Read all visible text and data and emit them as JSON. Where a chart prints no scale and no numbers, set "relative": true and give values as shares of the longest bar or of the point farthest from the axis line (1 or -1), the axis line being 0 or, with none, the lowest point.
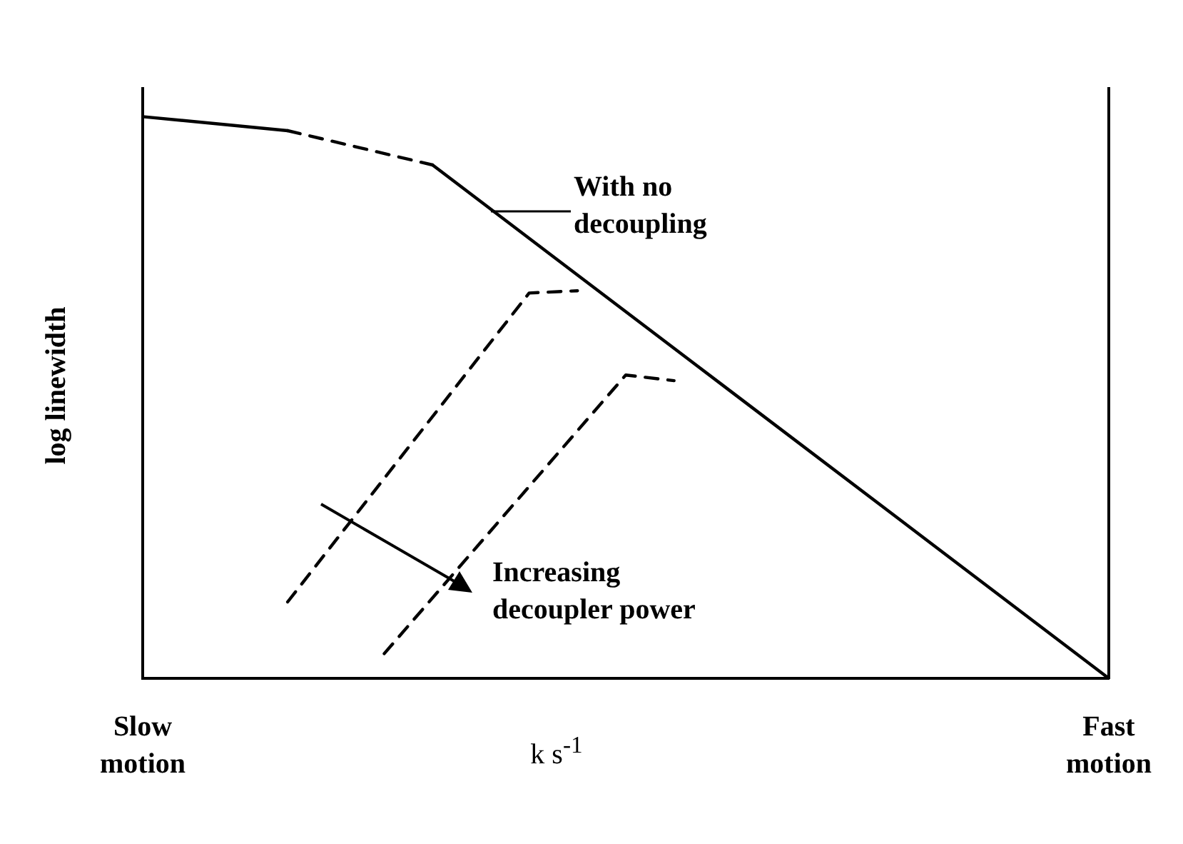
{
  "chart_data": {
    "type": "line",
    "relative": true,
    "xlabel": "k s$^{-1}$",
    "ylabel": "log linewidth",
    "legend": false,
    "grid": false,
    "tick_labels": "x",
    "marker": "none",
    "categories": [
      "Slow motion",
      null,
      null,
      null,
      null,
      null,
      null,
      null,
      null,
      null,
      null,
      null,
      null,
      null,
      null,
      null,
      null,
      null,
      null,
      null,
      "Fast motion"
    ],
    "series": [
      {
        "color": "#000000",
        "line_style": "solid",
        "values": [
          1,
          null,
          null,
          0.975,
          null,
          null,
          null,
          null,
          null,
          null,
          null,
          null,
          null,
          null,
          null,
          null,
          null,
          null,
          null,
          null,
          null
        ]
      },
      {
        "color": "#000000",
        "line_style": "dashed",
        "values": [
          null,
          null,
          null,
          0.975,
          null,
          null,
          0.914,
          null,
          null,
          null,
          null,
          null,
          null,
          null,
          null,
          null,
          null,
          null,
          null,
          null,
          null
        ]
      },
      {
        "color": "#000000",
        "line_style": "solid",
        "values": [
          null,
          null,
          null,
          null,
          null,
          null,
          0.914,
          null,
          null,
          null,
          null,
          null,
          null,
          null,
          null,
          null,
          null,
          null,
          null,
          null,
          0
        ]
      },
      {
        "color": "#000000",
        "line_style": "dashed",
        "values": [
          null,
          null,
          null,
          0.136,
          null,
          null,
          null,
          null,
          0.686,
          0.69,
          null,
          null,
          null,
          null,
          null,
          null,
          null,
          null,
          null,
          null,
          null
        ]
      },
      {
        "color": "#000000",
        "line_style": "dashed",
        "values": [
          null,
          null,
          null,
          null,
          null,
          0.044,
          null,
          null,
          null,
          null,
          0.54,
          0.53,
          null,
          null,
          null,
          null,
          null,
          null,
          null,
          null,
          null
        ]
      }
    ],
    "annotations": [
      "With no decoupling",
      "Increasing decoupler power"
    ]
  }
}
